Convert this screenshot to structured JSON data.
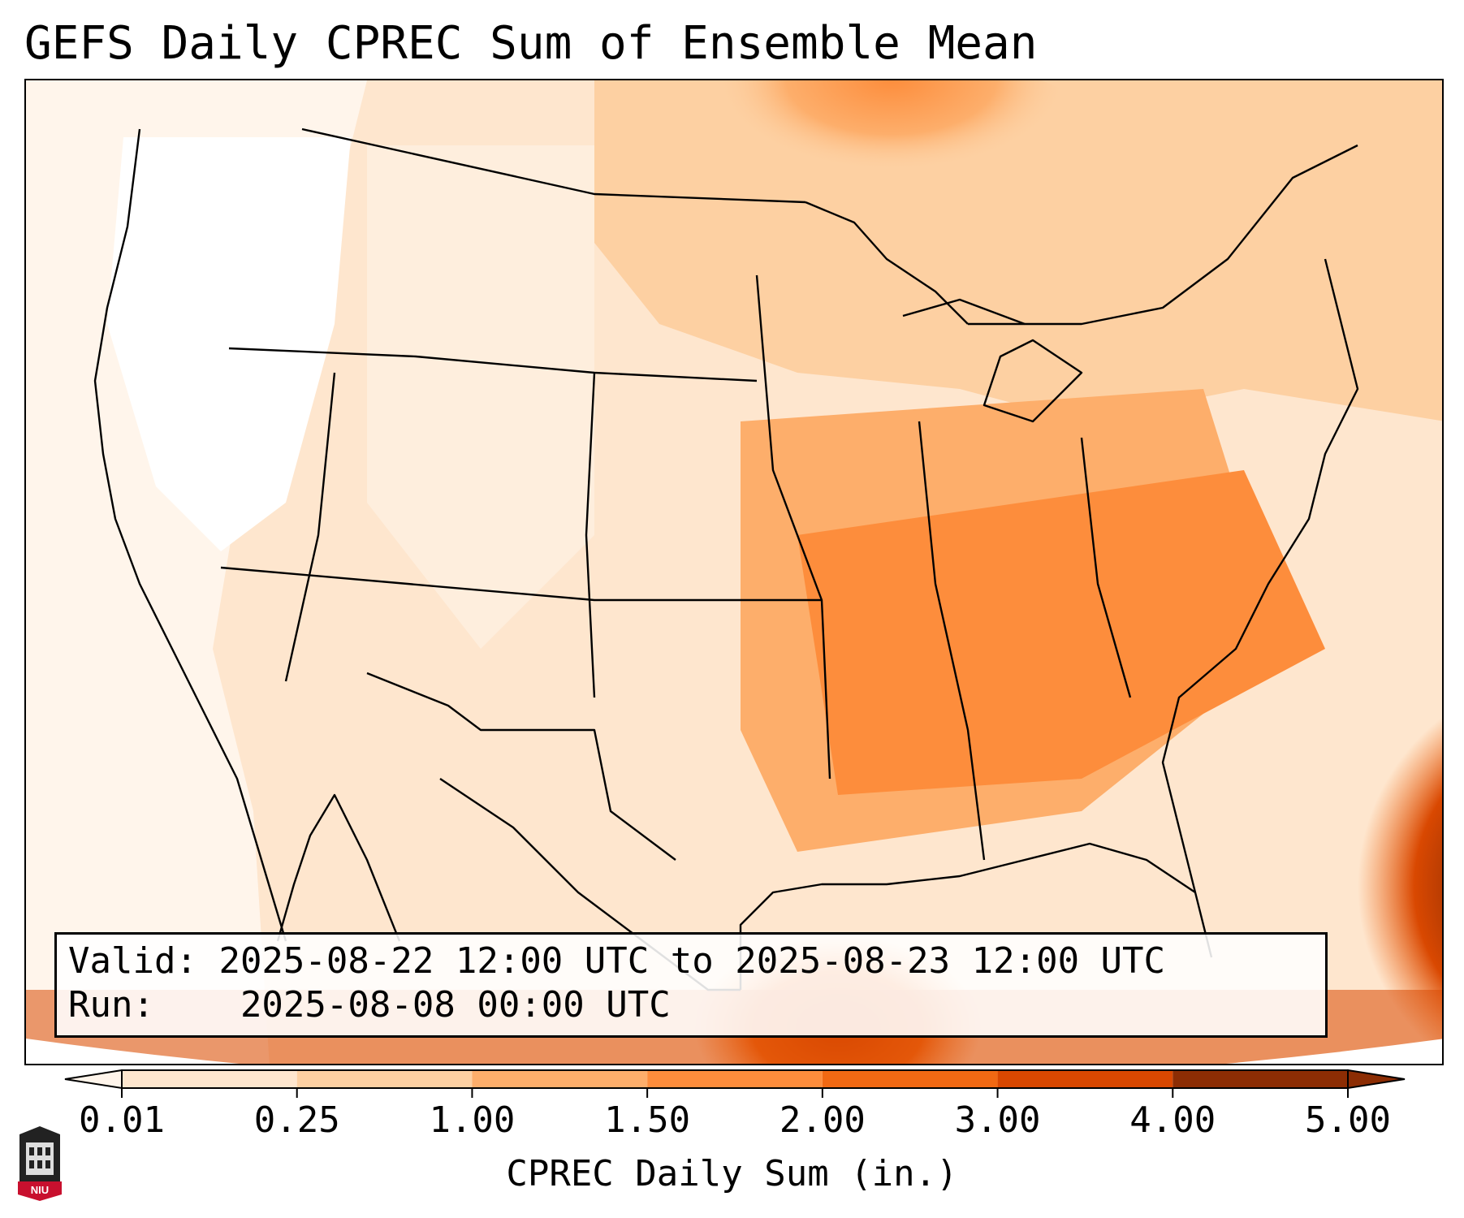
{
  "title": "GEFS Daily CPREC Sum of Ensemble Mean",
  "info": {
    "valid_label": "Valid:",
    "valid_value": "2025-08-22 12:00 UTC to 2025-08-23 12:00 UTC",
    "run_label": "Run:",
    "run_value": "2025-08-08 00:00 UTC"
  },
  "colorbar": {
    "label": "CPREC Daily Sum (in.)",
    "ticks": [
      "0.01",
      "0.25",
      "1.00",
      "1.50",
      "2.00",
      "3.00",
      "4.00",
      "5.00"
    ],
    "colors": [
      "#fff5eb",
      "#fee6ce",
      "#fdd0a2",
      "#fdae6b",
      "#fd8d3c",
      "#f16913",
      "#d94801",
      "#8c2d04"
    ]
  },
  "logo": {
    "text": "NIU",
    "icon": "niu-logo-icon"
  }
}
